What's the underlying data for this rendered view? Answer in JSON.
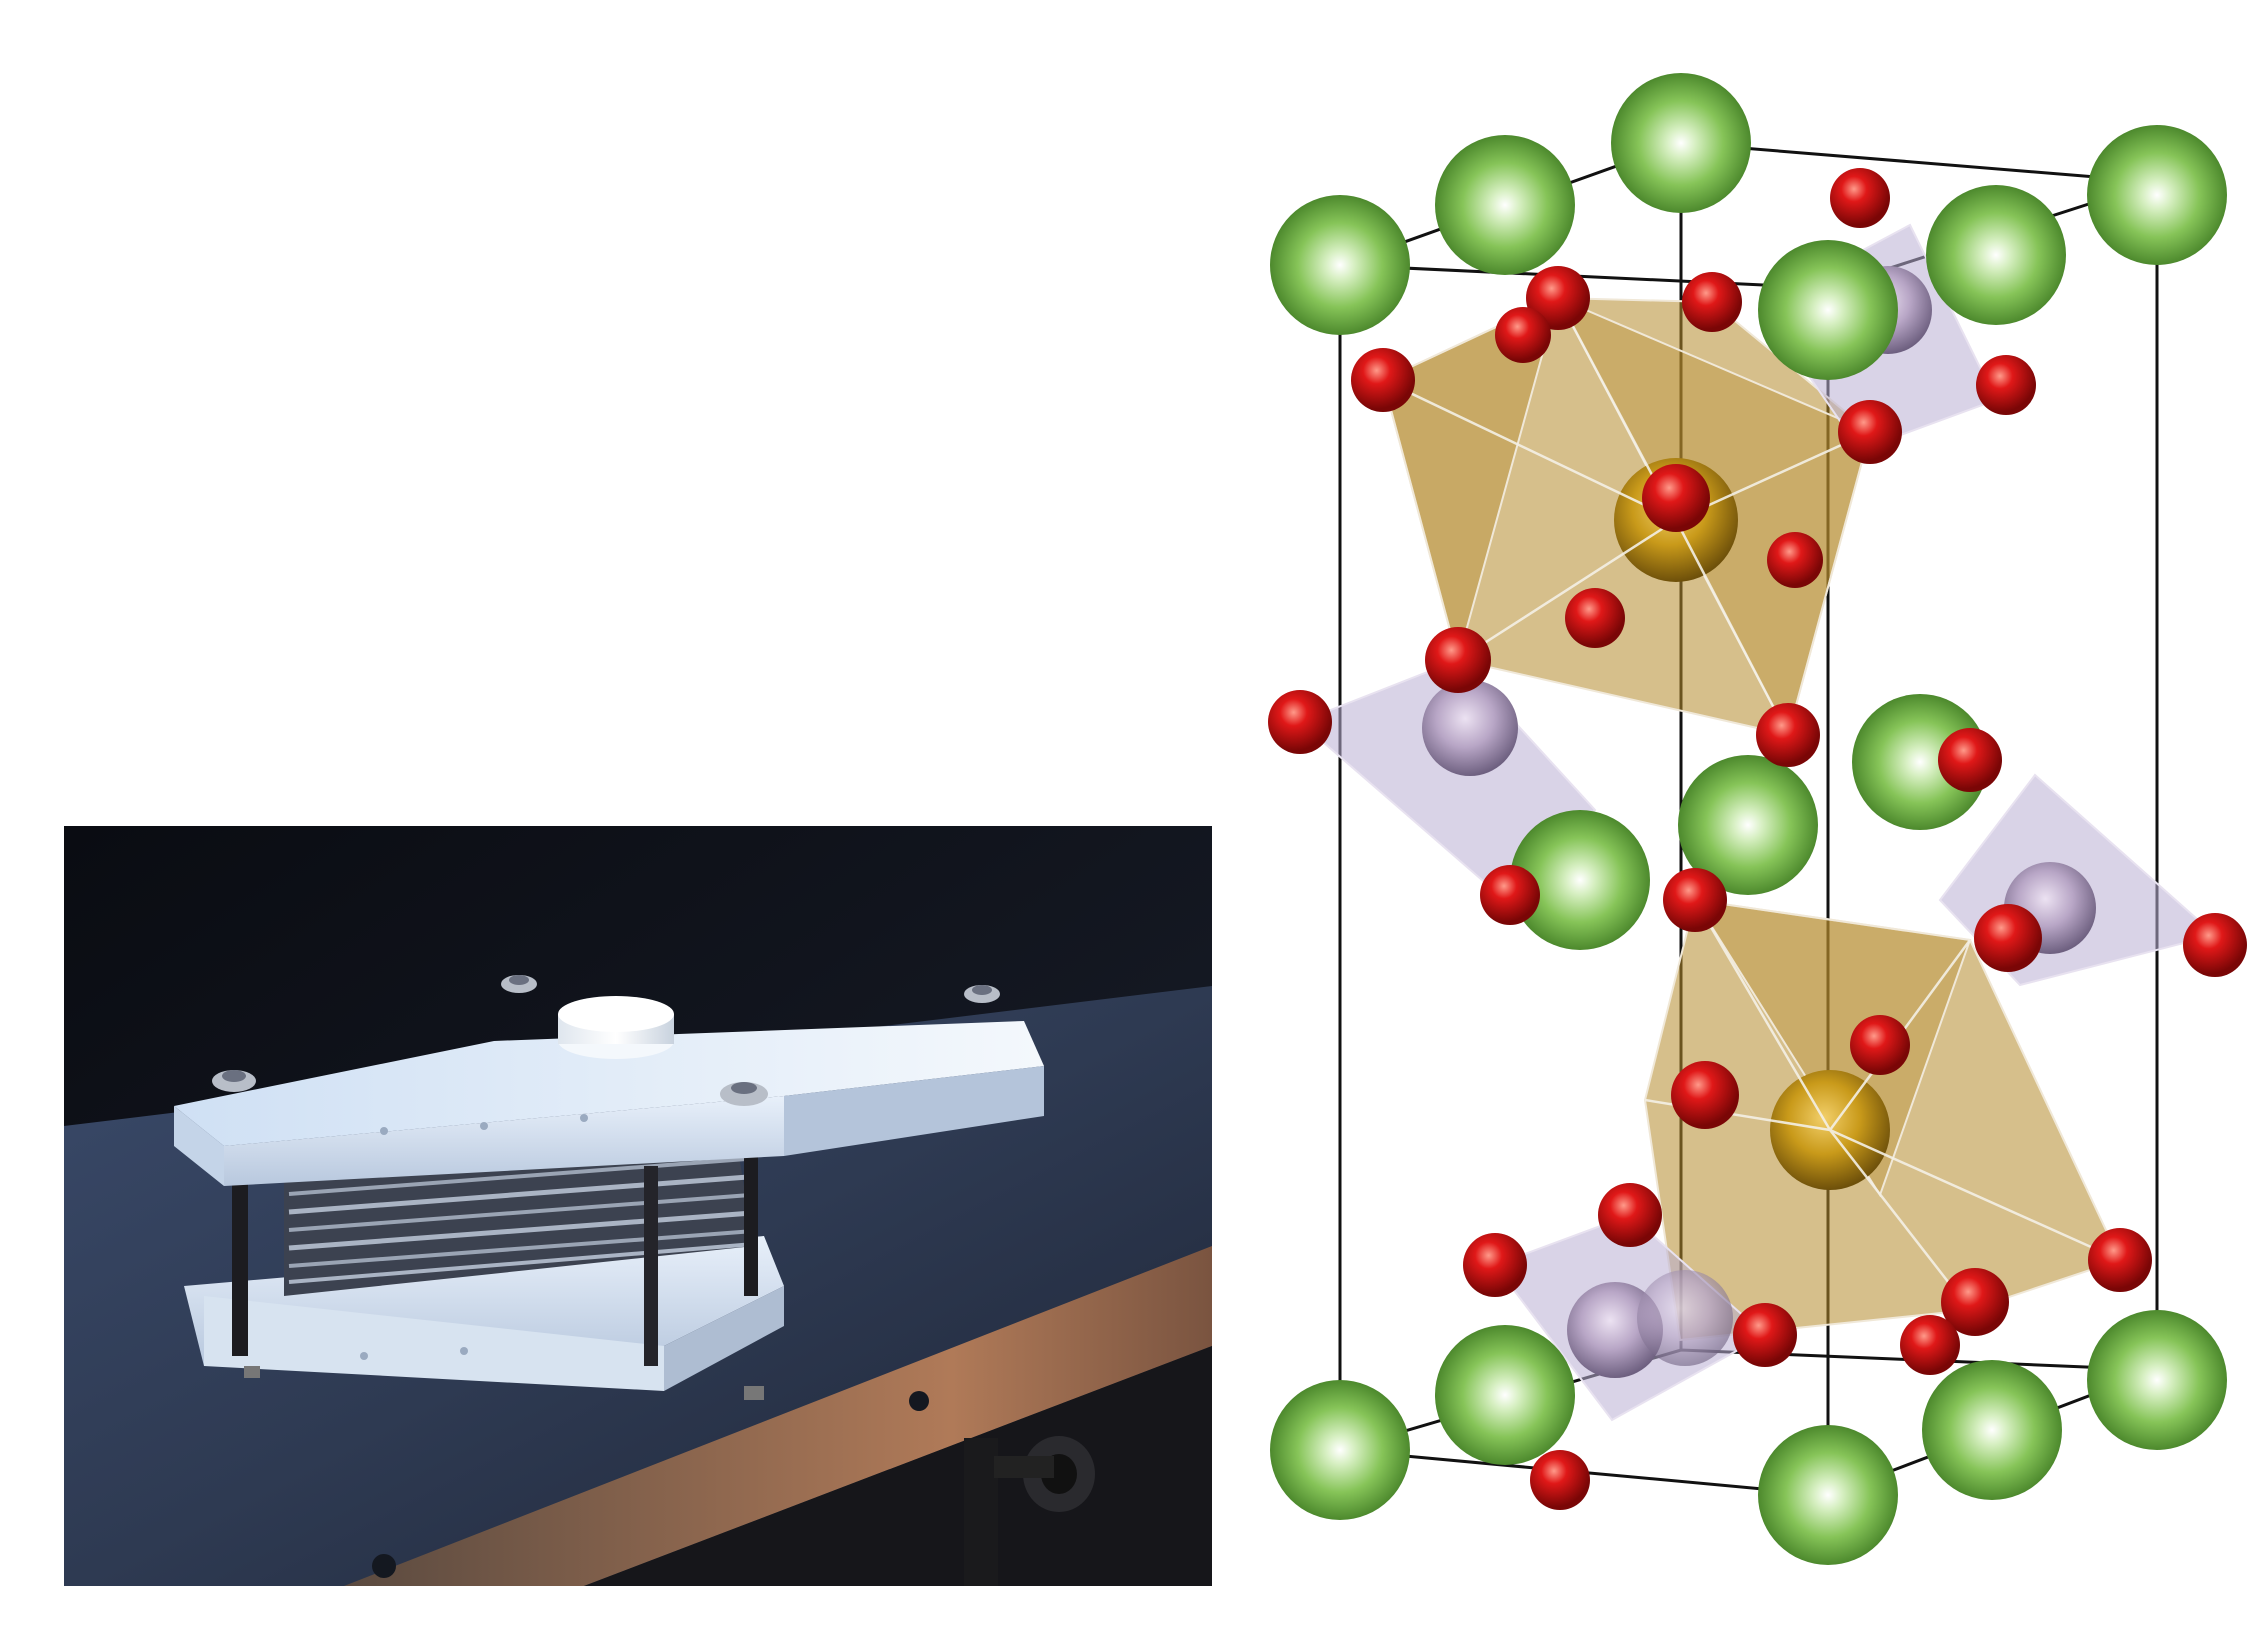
{
  "figure": {
    "left_panel": {
      "content": "photo",
      "subject": "stacked-plate-device"
    },
    "right_panel": {
      "content": "crystal-structure",
      "colors": {
        "large_atom": "#7cc24e",
        "oxygen": "#d01414",
        "octahedron_center": "#c99a1a",
        "octahedron_face": "#b48a2c",
        "tetrahedron_center": "#b8a6c6",
        "tetrahedron_face": "#b9aed4",
        "cell_edge": "#111111"
      }
    }
  }
}
